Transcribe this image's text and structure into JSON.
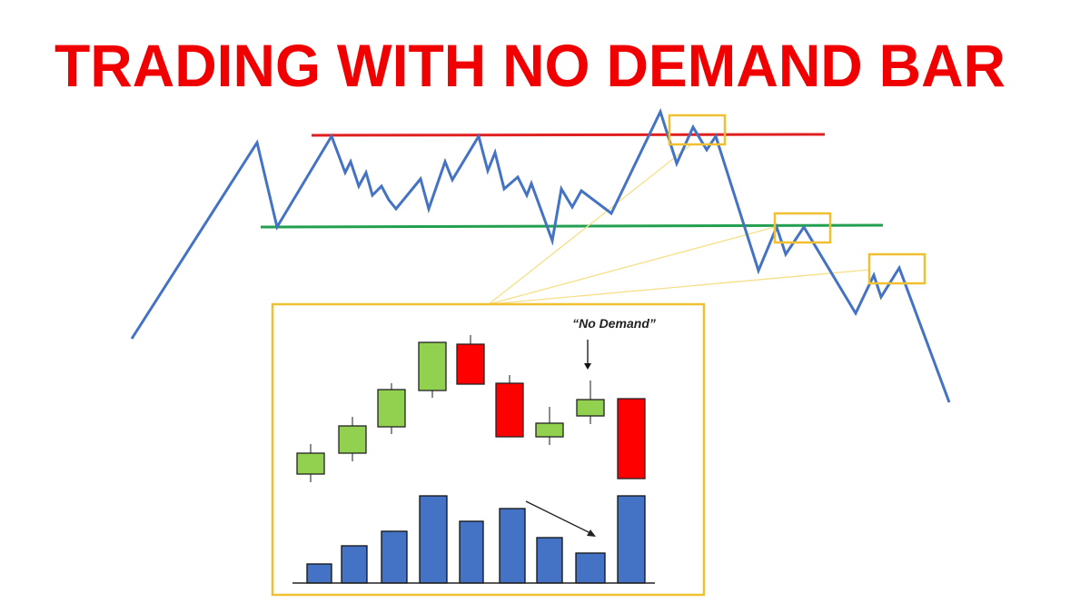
{
  "title": "TRADING WITH NO DEMAND BAR",
  "annotation": "“No Demand”",
  "colors": {
    "title": "#f00000",
    "price_line": "#4472c4",
    "resistance": "#e02020",
    "support": "#22a050",
    "highlight": "#f0c030",
    "connector": "#f5e08a",
    "bull": "#92d050",
    "bear": "#ff0000",
    "volume": "#4472c4"
  },
  "chart_data": {
    "type": "candlestick-with-volume",
    "candles": [
      {
        "direction": "up",
        "open": 38,
        "close": 61,
        "high": 71,
        "low": 29
      },
      {
        "direction": "up",
        "open": 61,
        "close": 91,
        "high": 101,
        "low": 52
      },
      {
        "direction": "up",
        "open": 90,
        "close": 131,
        "high": 138,
        "low": 82
      },
      {
        "direction": "up",
        "open": 130,
        "close": 183,
        "high": 183,
        "low": 122
      },
      {
        "direction": "down",
        "open": 181,
        "close": 137,
        "high": 191,
        "low": 137
      },
      {
        "direction": "down",
        "open": 138,
        "close": 79,
        "high": 147,
        "low": 79
      },
      {
        "direction": "up",
        "open": 79,
        "close": 94,
        "high": 112,
        "low": 70
      },
      {
        "direction": "up",
        "open": 102,
        "close": 120,
        "high": 141,
        "low": 93
      },
      {
        "direction": "down",
        "open": 121,
        "close": 33,
        "high": 121,
        "low": 33
      }
    ],
    "volume": [
      21,
      41,
      57,
      96,
      68,
      82,
      50,
      33,
      96
    ],
    "no_demand_index": 7
  }
}
